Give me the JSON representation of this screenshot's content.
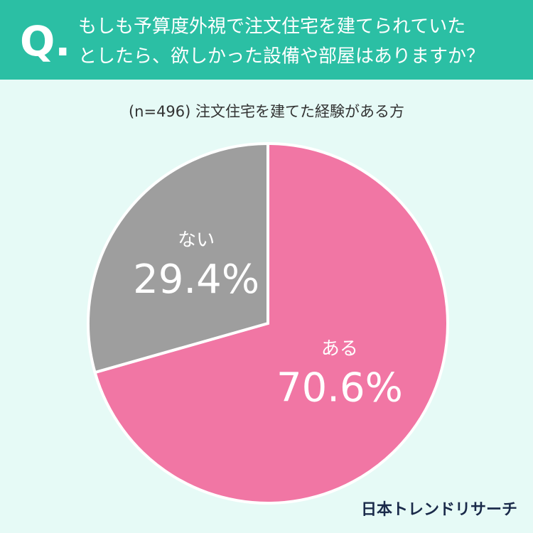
{
  "chart_data": {
    "type": "pie",
    "title_prefix": "Q.",
    "title_lines": [
      "もしも予算度外視で注文住宅を建てられていた",
      "としたら、欲しかった設備や部屋はありますか？"
    ],
    "subtitle": "(n=496) 注文住宅を建てた経験がある方",
    "categories": [
      "ある",
      "ない"
    ],
    "values": [
      70.6,
      29.4
    ],
    "value_labels": [
      "70.6%",
      "29.4%"
    ],
    "colors": [
      "#f176a4",
      "#9e9e9e"
    ],
    "source": "日本トレンドリサーチ"
  }
}
